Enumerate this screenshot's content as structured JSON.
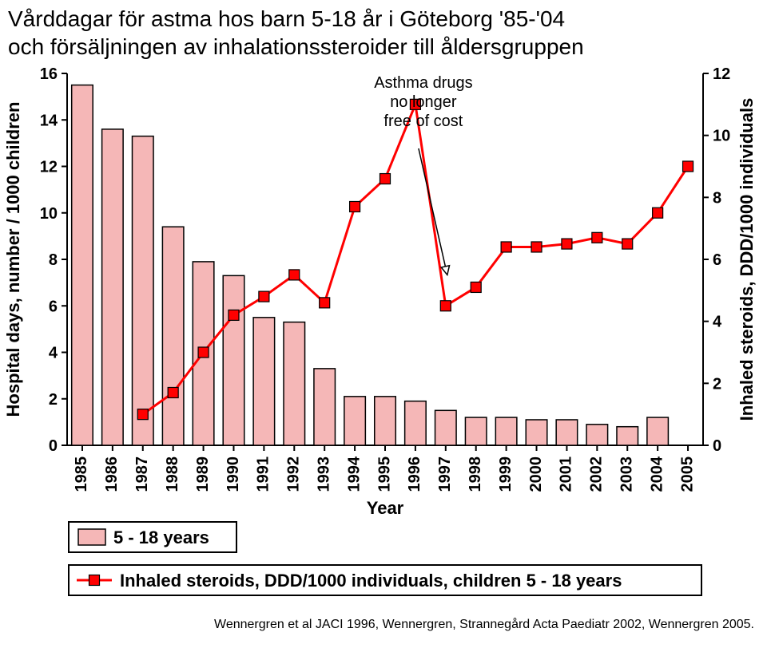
{
  "title_line1": "Vårddagar för astma hos barn 5-18 år i Göteborg '85-'04",
  "title_line2": "och försäljningen av inhalationssteroider till åldersgruppen",
  "chart": {
    "type": "bar+line",
    "categories": [
      "1985",
      "1986",
      "1987",
      "1988",
      "1989",
      "1990",
      "1991",
      "1992",
      "1993",
      "1994",
      "1995",
      "1996",
      "1997",
      "1998",
      "1999",
      "2000",
      "2001",
      "2002",
      "2003",
      "2004",
      "2005"
    ],
    "bars": {
      "values": [
        15.5,
        13.6,
        13.3,
        9.4,
        7.9,
        7.3,
        5.5,
        5.3,
        3.3,
        2.1,
        2.1,
        1.9,
        1.5,
        1.2,
        1.2,
        1.1,
        1.1,
        0.9,
        0.8,
        1.2,
        null
      ],
      "fill": "#f5b7b7",
      "stroke": "#000000",
      "stroke_width": 1.5,
      "bar_width": 0.7
    },
    "line": {
      "values": [
        null,
        null,
        1.0,
        1.7,
        3.0,
        4.2,
        4.8,
        5.5,
        4.6,
        7.7,
        8.6,
        11.0,
        4.5,
        5.1,
        6.4,
        6.4,
        6.5,
        6.7,
        6.5,
        7.5,
        9.0
      ],
      "color": "#ff0000",
      "line_width": 3,
      "marker": "square",
      "marker_size": 13,
      "marker_fill": "#ff0000",
      "marker_stroke": "#000000"
    },
    "y_left": {
      "label": "Hospital days, number / 1000 children",
      "min": 0,
      "max": 16,
      "tick_step": 2,
      "ticks": [
        0,
        2,
        4,
        6,
        8,
        10,
        12,
        14,
        16
      ]
    },
    "y_right": {
      "label": "Inhaled steroids, DDD/1000 individuals",
      "min": 0,
      "max": 12,
      "tick_step": 2,
      "ticks": [
        0,
        2,
        4,
        6,
        8,
        10,
        12
      ]
    },
    "x_label": "Year",
    "annotation": {
      "lines": [
        "Asthma drugs",
        "no longer",
        "free of cost"
      ],
      "arrow_target_year": "1997",
      "text_pos_year": "1996"
    },
    "legend": {
      "bar_label": "5 - 18 years",
      "line_label": "Inhaled steroids, DDD/1000 individuals, children  5 - 18 years"
    },
    "colors": {
      "bg": "#ffffff",
      "axis": "#000000",
      "text": "#000000"
    },
    "font": {
      "tick_size": 20,
      "label_size": 22,
      "annot_size": 20
    }
  },
  "citation": "Wennergren et al JACI 1996, Wennergren, Strannegård Acta Paediatr 2002, Wennergren 2005."
}
